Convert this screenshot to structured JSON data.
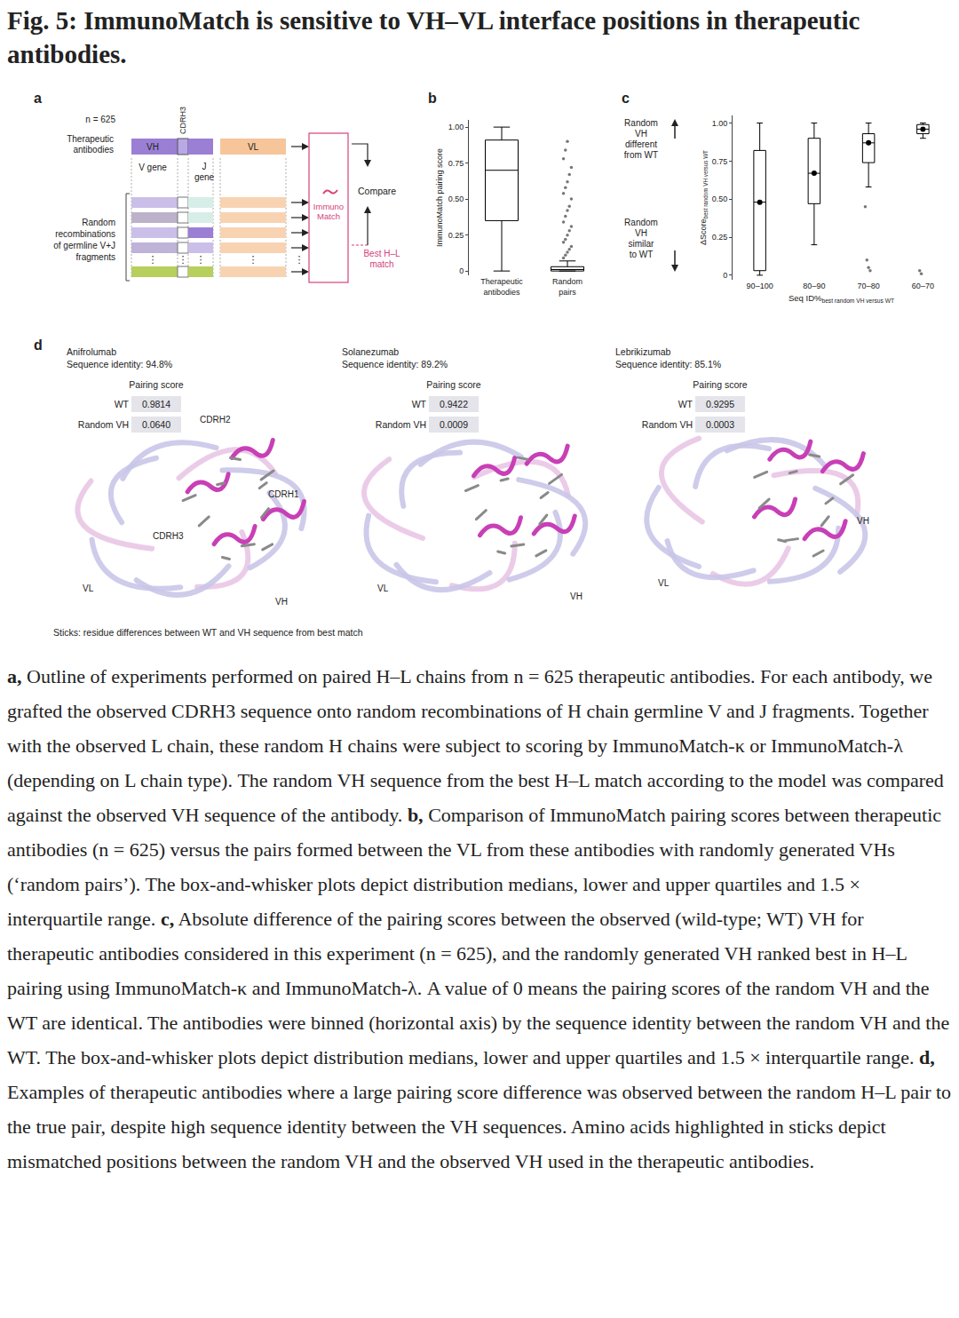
{
  "title": "Fig. 5: ImmunoMatch is sensitive to VH–VL interface positions in therapeutic antibodies.",
  "panel_labels": [
    "a",
    "b",
    "c",
    "d"
  ],
  "panel_a": {
    "n_label": "n = 625",
    "therapeutic_label": [
      "Therapeutic",
      "antibodies"
    ],
    "vh": "VH",
    "vl": "VL",
    "cdrh3": "CDRH3",
    "v_gene": "V gene",
    "j_gene": [
      "J",
      "gene"
    ],
    "random_label": [
      "Random",
      "recombinations",
      "of germline V+J",
      "fragments"
    ],
    "ellipsis": "⋮",
    "model": [
      "Immuno",
      "Match"
    ],
    "compare": "Compare",
    "best": [
      "Best H–L",
      "match"
    ]
  },
  "chart_data": [
    {
      "type": "box",
      "categories": [
        "Therapeutic antibodies",
        "Random pairs"
      ],
      "y_label": "ImmunoMatch pairing score",
      "color": "#000000",
      "boxes": [
        {
          "q1": 0.35,
          "median": 0.7,
          "q3": 0.91,
          "lowerfence": 0.0,
          "upperfence": 1.0,
          "outliers": []
        },
        {
          "q1": 0.0,
          "median": 0.01,
          "q3": 0.03,
          "lowerfence": 0.0,
          "upperfence": 0.07,
          "outliers": [
            0.09,
            0.11,
            0.13,
            0.15,
            0.17,
            0.2,
            0.22,
            0.25,
            0.28,
            0.31,
            0.34,
            0.38,
            0.42,
            0.45,
            0.5,
            0.54,
            0.58,
            0.62,
            0.67,
            0.72,
            0.78,
            0.84,
            0.9
          ]
        }
      ],
      "ylim": [
        -0.03,
        1.05
      ],
      "yticks": [
        0,
        0.25,
        {
          "value": 0.5,
          "label": "0.50"
        },
        0.75,
        {
          "value": 1,
          "label": "1.00"
        }
      ]
    },
    {
      "type": "box",
      "categories": [
        "90–100",
        "80–90",
        "70–80",
        "60–70"
      ],
      "x_label": "Seq ID%",
      "x_label_sub": "best random VH versus WT",
      "y_label": "ΔScore",
      "y_label_sub": "best random VH versus WT",
      "color": "#000000",
      "marker": "circle",
      "boxes": [
        {
          "q1": 0.03,
          "median": 0.48,
          "q3": 0.82,
          "lowerfence": 0.0,
          "upperfence": 1.0,
          "outliers": []
        },
        {
          "q1": 0.47,
          "median": 0.67,
          "q3": 0.9,
          "lowerfence": 0.2,
          "upperfence": 1.0,
          "outliers": []
        },
        {
          "q1": 0.74,
          "median": 0.87,
          "q3": 0.93,
          "lowerfence": 0.58,
          "upperfence": 1.0,
          "outliers": [
            0.45,
            0.1,
            0.05,
            0.03
          ]
        },
        {
          "q1": 0.93,
          "median": 0.96,
          "q3": 0.99,
          "lowerfence": 0.9,
          "upperfence": 1.0,
          "outliers": [
            0.03,
            0.01
          ]
        }
      ],
      "ylim": [
        -0.03,
        1.05
      ],
      "yticks": [
        0,
        0.25,
        {
          "value": 0.5,
          "label": "0.50"
        },
        0.75,
        {
          "value": 1,
          "label": "1.00"
        }
      ]
    }
  ],
  "panel_c_notes": {
    "top": [
      "Random",
      "VH",
      "different",
      "from WT"
    ],
    "bottom": [
      "Random",
      "VH",
      "similar",
      "to WT"
    ]
  },
  "panel_d": {
    "panels": [
      {
        "name": "Anifrolumab",
        "identity": "Sequence identity: 94.8%",
        "score_header": "Pairing score",
        "wt_label": "WT",
        "wt_score": "0.9814",
        "random_label": "Random VH",
        "random_score": "0.0640",
        "labels": [
          "CDRH2",
          "CDRH1",
          "CDRH3",
          "VL",
          "VH"
        ]
      },
      {
        "name": "Solanezumab",
        "identity": "Sequence identity: 89.2%",
        "score_header": "Pairing score",
        "wt_label": "WT",
        "wt_score": "0.9422",
        "random_label": "Random VH",
        "random_score": "0.0009",
        "labels": [
          "VL",
          "VH"
        ]
      },
      {
        "name": "Lebrikizumab",
        "identity": "Sequence identity: 85.1%",
        "score_header": "Pairing score",
        "wt_label": "WT",
        "wt_score": "0.9295",
        "random_label": "Random VH",
        "random_score": "0.0003",
        "labels": [
          "VH",
          "VL"
        ]
      }
    ],
    "footnote": "Sticks: residue differences between WT and VH sequence from best match"
  },
  "caption": [
    {
      "label": "a,",
      "text": "Outline of experiments performed on paired H–L chains from n = 625 therapeutic antibodies. For each antibody, we grafted the observed CDRH3 sequence onto random recombinations of H chain germline V and J fragments. Together with the observed L chain, these random H chains were subject to scoring by ImmunoMatch-κ or ImmunoMatch-λ (depending on L chain type). The random VH sequence from the best H–L match according to the model was compared against the observed VH sequence of the antibody."
    },
    {
      "label": "b,",
      "text": "Comparison of ImmunoMatch pairing scores between therapeutic antibodies (n = 625) versus the pairs formed between the VL from these antibodies with randomly generated VHs (‘random pairs’). The box-and-whisker plots depict distribution medians, lower and upper quartiles and 1.5 × interquartile range."
    },
    {
      "label": "c,",
      "text": "Absolute difference of the pairing scores between the observed (wild-type; WT) VH for therapeutic antibodies considered in this experiment (n = 625), and the randomly generated VH ranked best in H–L pairing using ImmunoMatch-κ and ImmunoMatch-λ. A value of 0 means the pairing scores of the random VH and the WT are identical. The antibodies were binned (horizontal axis) by the sequence identity between the random VH and the WT. The box-and-whisker plots depict distribution medians, lower and upper quartiles and 1.5 × interquartile range."
    },
    {
      "label": "d,",
      "text": "Examples of therapeutic antibodies where a large pairing score difference was observed between the random H–L pair to the true pair, despite high sequence identity between the VH sequences. Amino acids highlighted in sticks depict mismatched positions between the random VH and the observed VH used in the therapeutic antibodies."
    }
  ]
}
